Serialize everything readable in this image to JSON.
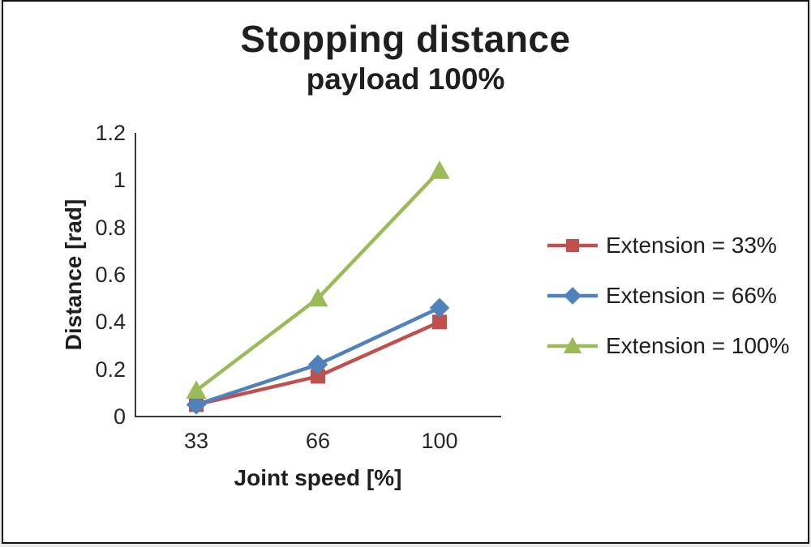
{
  "chart_data": {
    "type": "line",
    "title": "Stopping distance",
    "subtitle": "payload 100%",
    "xlabel": "Joint speed [%]",
    "ylabel": "Distance [rad]",
    "categories": [
      "33",
      "66",
      "100"
    ],
    "ylim": [
      0,
      1.2
    ],
    "yticks": [
      "0",
      "0.2",
      "0.4",
      "0.6",
      "0.8",
      "1",
      "1.2"
    ],
    "grid": false,
    "legend_position": "right",
    "series": [
      {
        "name": "Extension = 33%",
        "color": "#C0504D",
        "marker": "square",
        "values": [
          0.05,
          0.17,
          0.4
        ]
      },
      {
        "name": "Extension = 66%",
        "color": "#4F81BD",
        "marker": "diamond",
        "values": [
          0.05,
          0.22,
          0.46
        ]
      },
      {
        "name": "Extension = 100%",
        "color": "#9BBB59",
        "marker": "triangle",
        "values": [
          0.11,
          0.5,
          1.04
        ]
      }
    ]
  }
}
